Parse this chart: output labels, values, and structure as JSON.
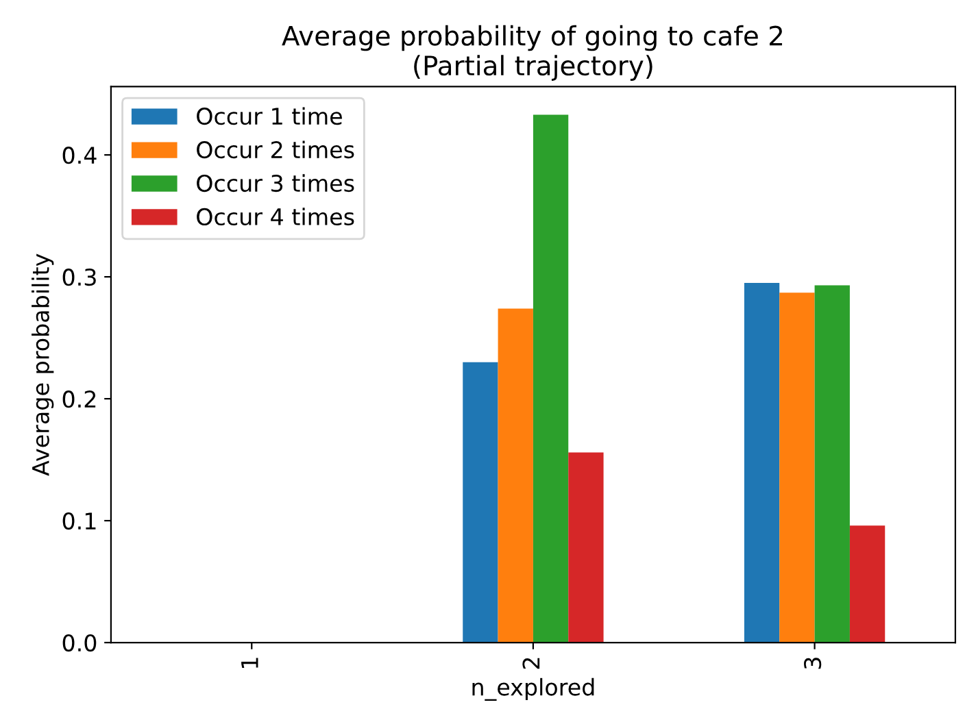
{
  "chart_data": {
    "type": "bar",
    "title": "Average probability of going to cafe 2\n(Partial trajectory)",
    "xlabel": "n_explored",
    "ylabel": "Average probability",
    "categories": [
      "1",
      "2",
      "3"
    ],
    "series": [
      {
        "name": "Occur 1 time",
        "color": "#1f77b4",
        "values": [
          null,
          0.23,
          0.295
        ]
      },
      {
        "name": "Occur 2 times",
        "color": "#ff7f0e",
        "values": [
          null,
          0.274,
          0.287
        ]
      },
      {
        "name": "Occur 3 times",
        "color": "#2ca02c",
        "values": [
          null,
          0.433,
          0.293
        ]
      },
      {
        "name": "Occur 4 times",
        "color": "#d62728",
        "values": [
          null,
          0.156,
          0.096
        ]
      }
    ],
    "ylim": [
      0,
      0.456
    ],
    "yticks": [
      {
        "value": 0,
        "label": "0.0"
      },
      0.1,
      0.2,
      0.3,
      0.4
    ],
    "grid": false,
    "legend": "top left"
  }
}
